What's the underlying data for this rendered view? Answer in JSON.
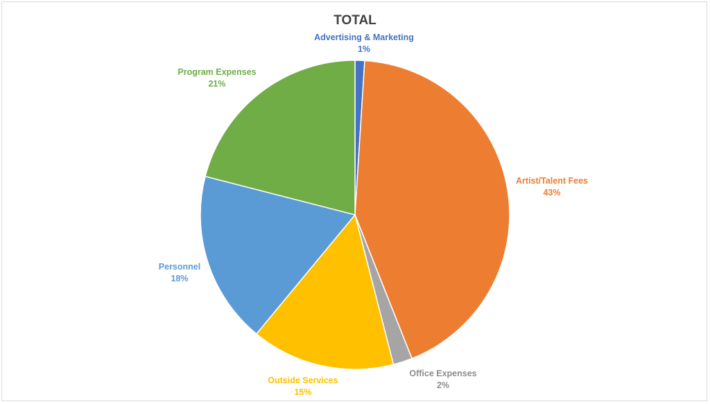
{
  "chart_data": {
    "type": "pie",
    "title": "TOTAL",
    "slices": [
      {
        "label": "Advertising & Marketing",
        "value": 1,
        "value_label": "1%",
        "color": "#4472C4"
      },
      {
        "label": "Artist/Talent Fees",
        "value": 43,
        "value_label": "43%",
        "color": "#ED7D31"
      },
      {
        "label": "Office Expenses",
        "value": 2,
        "value_label": "2%",
        "color": "#A5A5A5"
      },
      {
        "label": "Outside Services",
        "value": 15,
        "value_label": "15%",
        "color": "#FFC000"
      },
      {
        "label": "Personnel",
        "value": 18,
        "value_label": "18%",
        "color": "#5B9BD5"
      },
      {
        "label": "Program Expenses",
        "value": 21,
        "value_label": "21%",
        "color": "#70AD47"
      }
    ],
    "legend": "none",
    "data_labels": "outside, category name and percentage"
  }
}
